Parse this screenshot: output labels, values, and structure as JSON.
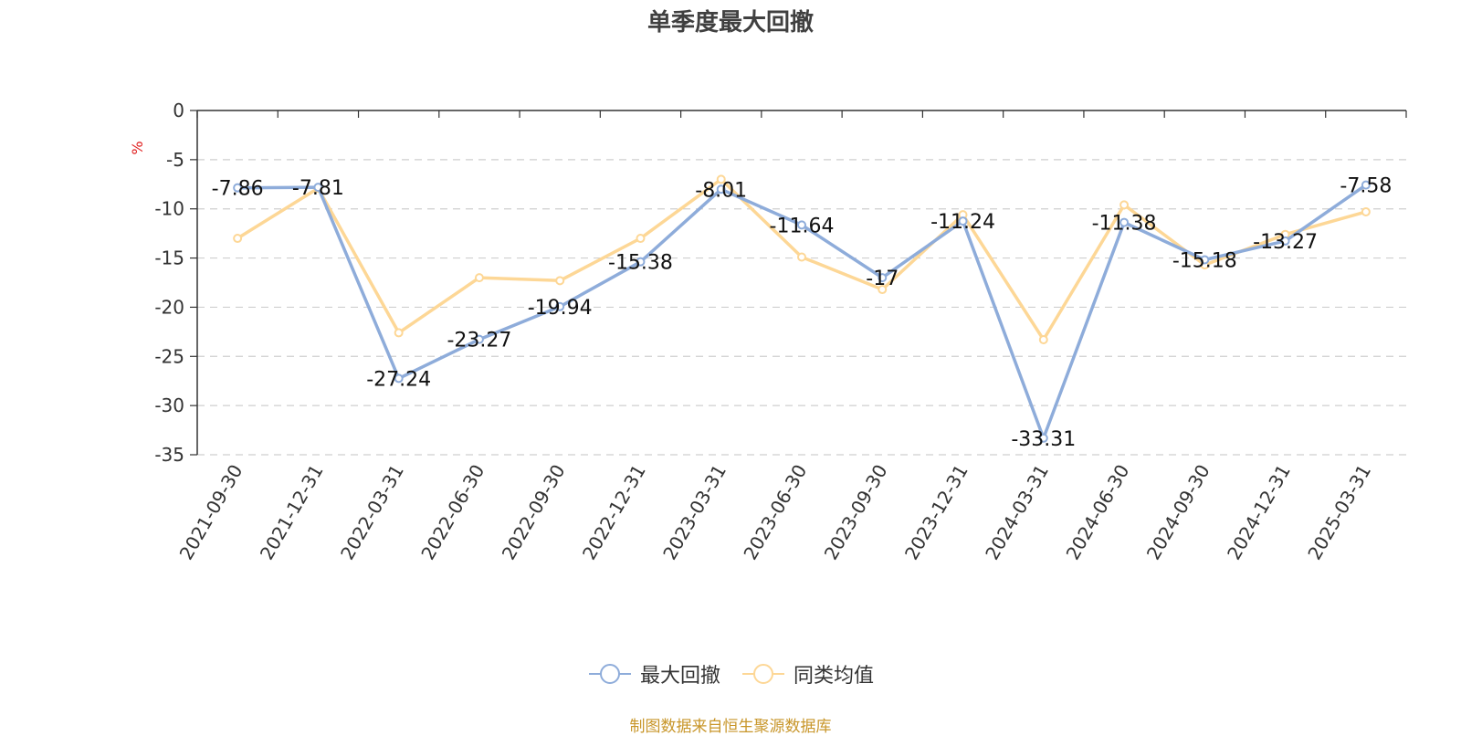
{
  "chart_data": {
    "type": "line",
    "title": "单季度最大回撤",
    "ylabel": "%",
    "xlabel": "",
    "categories": [
      "2021-09-30",
      "2021-12-31",
      "2022-03-31",
      "2022-06-30",
      "2022-09-30",
      "2022-12-31",
      "2023-03-31",
      "2023-06-30",
      "2023-09-30",
      "2023-12-31",
      "2024-03-31",
      "2024-06-30",
      "2024-09-30",
      "2024-12-31",
      "2025-03-31"
    ],
    "ylim": [
      -35,
      0
    ],
    "yticks": [
      0,
      -5,
      -10,
      -15,
      -20,
      -25,
      -30,
      -35
    ],
    "grid": true,
    "legend_position": "bottom",
    "series": [
      {
        "name": "最大回撤",
        "color": "#8eacda",
        "show_labels": true,
        "values": [
          -7.86,
          -7.81,
          -27.24,
          -23.27,
          -19.94,
          -15.38,
          -8.01,
          -11.64,
          -17,
          -11.24,
          -33.31,
          -11.38,
          -15.18,
          -13.27,
          -7.58
        ]
      },
      {
        "name": "同类均值",
        "color": "#fdd796",
        "show_labels": false,
        "values": [
          -13.0,
          -7.9,
          -22.6,
          -17.0,
          -17.3,
          -13.0,
          -7.0,
          -14.9,
          -18.2,
          -10.6,
          -23.3,
          -9.6,
          -15.7,
          -12.6,
          -10.3
        ]
      }
    ]
  },
  "footer": {
    "source": "制图数据来自恒生聚源数据库"
  }
}
